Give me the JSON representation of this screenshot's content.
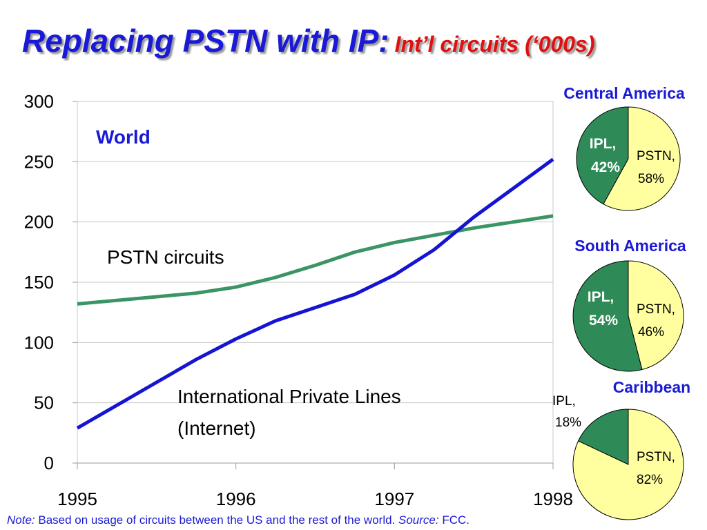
{
  "title": {
    "main": "Replacing PSTN with IP:",
    "sub": "Int’l circuits (‘000s)"
  },
  "colors": {
    "pstn": "#3a9466",
    "ipl": "#1414d2",
    "pie_ipl": "#2e8b57",
    "pie_pstn": "#ffffa0",
    "accent": "#1a1ad6"
  },
  "chart_data": [
    {
      "type": "line",
      "x_ticks": [
        "1995",
        "1996",
        "1997",
        "1998"
      ],
      "ylim": [
        0,
        300
      ],
      "y_ticks": [
        "0",
        "50",
        "100",
        "150",
        "200",
        "250",
        "300"
      ],
      "grid": "horizontal",
      "annotations": {
        "world": "World",
        "pstn": "PSTN circuits",
        "ipl_1": "International Private Lines",
        "ipl_2": "(Internet)"
      },
      "series": [
        {
          "name": "PSTN circuits",
          "x": [
            1995,
            1995.25,
            1995.5,
            1995.75,
            1996,
            1996.25,
            1996.5,
            1996.75,
            1997,
            1997.25,
            1997.5,
            1997.75,
            1998
          ],
          "values": [
            132,
            135,
            138,
            141,
            146,
            154,
            164,
            175,
            183,
            189,
            195,
            200,
            205
          ]
        },
        {
          "name": "International Private Lines (Internet)",
          "x": [
            1995,
            1995.25,
            1995.5,
            1995.75,
            1996,
            1996.25,
            1996.5,
            1996.75,
            1997,
            1997.25,
            1997.5,
            1997.75,
            1998
          ],
          "values": [
            29,
            48,
            67,
            86,
            103,
            118,
            129,
            140,
            156,
            177,
            204,
            228,
            252
          ]
        }
      ]
    },
    {
      "type": "pie",
      "title": "Central America",
      "slices": [
        {
          "label": "IPL,",
          "pct": "42%",
          "value": 42
        },
        {
          "label": "PSTN,",
          "pct": "58%",
          "value": 58
        }
      ]
    },
    {
      "type": "pie",
      "title": "South America",
      "slices": [
        {
          "label": "IPL,",
          "pct": "54%",
          "value": 54
        },
        {
          "label": "PSTN,",
          "pct": "46%",
          "value": 46
        }
      ]
    },
    {
      "type": "pie",
      "title": "Caribbean",
      "slices": [
        {
          "label": "IPL,",
          "pct": "18%",
          "value": 18
        },
        {
          "label": "PSTN,",
          "pct": "82%",
          "value": 82
        }
      ]
    }
  ],
  "note": {
    "note_label": "Note:",
    "note_text": " Based on usage of circuits between the US and the rest of the world. ",
    "source_label": "Source:",
    "source_text": " FCC."
  }
}
